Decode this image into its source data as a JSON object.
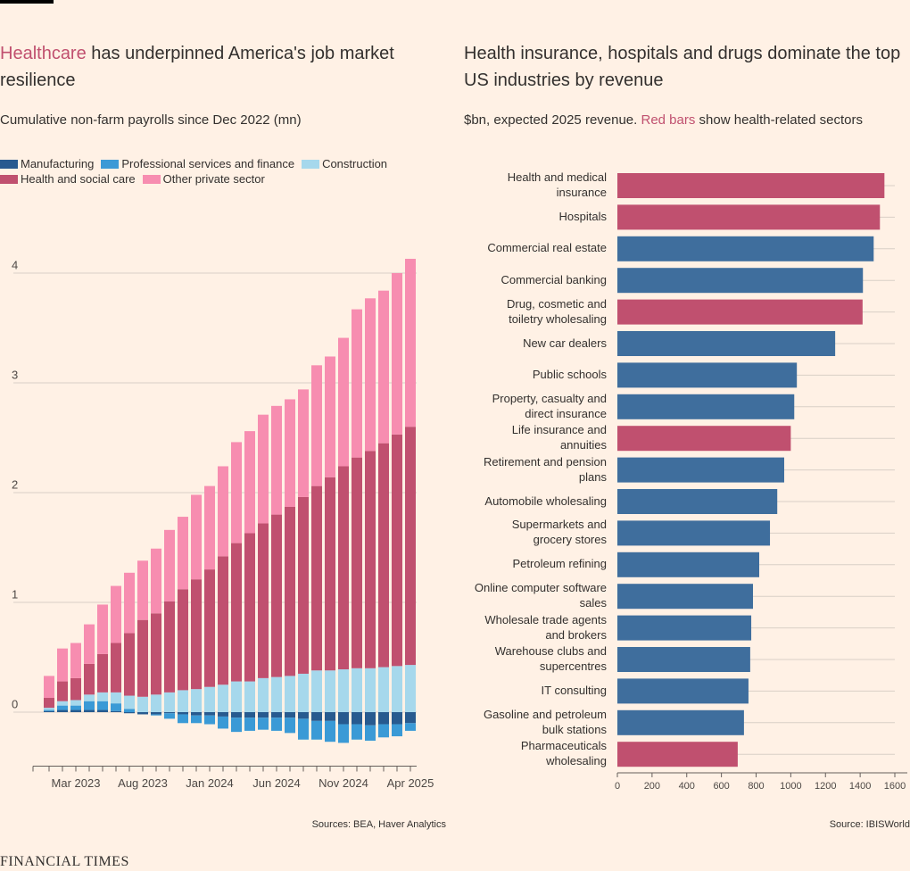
{
  "chart_data": [
    {
      "type": "bar",
      "stacked": true,
      "title": [
        "Healthcare",
        "has underpinned America's job market resilience"
      ],
      "highlight_color": "#c0506f",
      "subtitle": "Cumulative non-farm payrolls since Dec 2022 (mn)",
      "source": "Sources: BEA, Haver Analytics",
      "categories": [
        null,
        null,
        "Mar 2023",
        null,
        null,
        null,
        null,
        "Aug 2023",
        null,
        null,
        null,
        null,
        "Jan 2024",
        null,
        null,
        null,
        null,
        "Jun 2024",
        null,
        null,
        null,
        null,
        "Nov 2024",
        null,
        null,
        null,
        null,
        "Apr 2025"
      ],
      "series": [
        {
          "name": "Manufacturing",
          "color": "#275a8f",
          "values": [
            0.01,
            0.02,
            0.02,
            0.02,
            0.02,
            0.01,
            -0.01,
            -0.02,
            -0.02,
            -0.01,
            -0.02,
            -0.03,
            -0.03,
            -0.04,
            -0.05,
            -0.05,
            -0.05,
            -0.05,
            -0.05,
            -0.06,
            -0.08,
            -0.08,
            -0.11,
            -0.11,
            -0.12,
            -0.11,
            -0.11,
            -0.1
          ]
        },
        {
          "name": "Professional services and finance",
          "color": "#3a9ad6",
          "values": [
            0.01,
            0.04,
            0.04,
            0.08,
            0.08,
            0.07,
            0.03,
            0,
            -0.01,
            -0.05,
            -0.08,
            -0.07,
            -0.08,
            -0.11,
            -0.13,
            -0.12,
            -0.11,
            -0.12,
            -0.14,
            -0.19,
            -0.17,
            -0.19,
            -0.17,
            -0.14,
            -0.14,
            -0.12,
            -0.11,
            -0.07
          ]
        },
        {
          "name": "Construction",
          "color": "#a6d8ec",
          "values": [
            0.02,
            0.04,
            0.05,
            0.06,
            0.08,
            0.1,
            0.12,
            0.14,
            0.16,
            0.18,
            0.2,
            0.21,
            0.23,
            0.25,
            0.28,
            0.28,
            0.31,
            0.32,
            0.33,
            0.35,
            0.38,
            0.38,
            0.39,
            0.4,
            0.4,
            0.41,
            0.42,
            0.43
          ]
        },
        {
          "name": "Health and social care",
          "color": "#c0506f",
          "values": [
            0.09,
            0.18,
            0.2,
            0.28,
            0.35,
            0.45,
            0.57,
            0.7,
            0.74,
            0.83,
            0.92,
            1.0,
            1.07,
            1.17,
            1.26,
            1.35,
            1.41,
            1.48,
            1.54,
            1.61,
            1.68,
            1.76,
            1.85,
            1.92,
            1.98,
            2.04,
            2.11,
            2.17
          ]
        },
        {
          "name": "Other private sector",
          "color": "#f78db0",
          "values": [
            0.2,
            0.3,
            0.32,
            0.36,
            0.45,
            0.52,
            0.55,
            0.54,
            0.59,
            0.65,
            0.66,
            0.77,
            0.76,
            0.82,
            0.92,
            0.93,
            0.99,
            0.99,
            0.98,
            0.98,
            1.1,
            1.1,
            1.17,
            1.35,
            1.39,
            1.39,
            1.47,
            1.53
          ]
        }
      ],
      "ylim": [
        -0.5,
        4.5
      ],
      "yticks": [
        0,
        1,
        2,
        3,
        4
      ],
      "grid": true
    },
    {
      "type": "bar",
      "orientation": "horizontal",
      "title": "Health insurance, hospitals and drugs dominate the top US industries by revenue",
      "subtitle": [
        "$bn, expected 2025 revenue.",
        "Red bars",
        "show health-related sectors"
      ],
      "highlight_color": "#c0506f",
      "source": "Source: IBISWorld",
      "categories": [
        "Health and medical\ninsurance",
        "Hospitals",
        "Commercial real estate",
        "Commercial banking",
        "Drug, cosmetic and\ntoiletry wholesaling",
        "New car dealers",
        "Public schools",
        "Property, casualty and\ndirect insurance",
        "Life insurance and\nannuities",
        "Retirement and pension\nplans",
        "Automobile wholesaling",
        "Supermarkets and\ngrocery stores",
        "Petroleum refining",
        "Online computer software\nsales",
        "Wholesale trade agents\nand brokers",
        "Warehouse clubs and\nsupercentres",
        "IT consulting",
        "Gasoline and petroleum\nbulk stations",
        "Pharmaceuticals\nwholesaling"
      ],
      "values": [
        1540,
        1514,
        1478,
        1416,
        1414,
        1256,
        1035,
        1020,
        1000,
        962,
        922,
        880,
        818,
        782,
        772,
        766,
        756,
        730,
        694
      ],
      "colors": [
        "#c0506f",
        "#c0506f",
        "#3f6e9d",
        "#3f6e9d",
        "#c0506f",
        "#3f6e9d",
        "#3f6e9d",
        "#3f6e9d",
        "#c0506f",
        "#3f6e9d",
        "#3f6e9d",
        "#3f6e9d",
        "#3f6e9d",
        "#3f6e9d",
        "#3f6e9d",
        "#3f6e9d",
        "#3f6e9d",
        "#3f6e9d",
        "#c0506f"
      ],
      "xlim": [
        0,
        1600
      ],
      "xticks": [
        0,
        200,
        400,
        600,
        800,
        1000,
        1200,
        1400,
        1600
      ]
    }
  ],
  "brand": "FINANCIAL TIMES"
}
